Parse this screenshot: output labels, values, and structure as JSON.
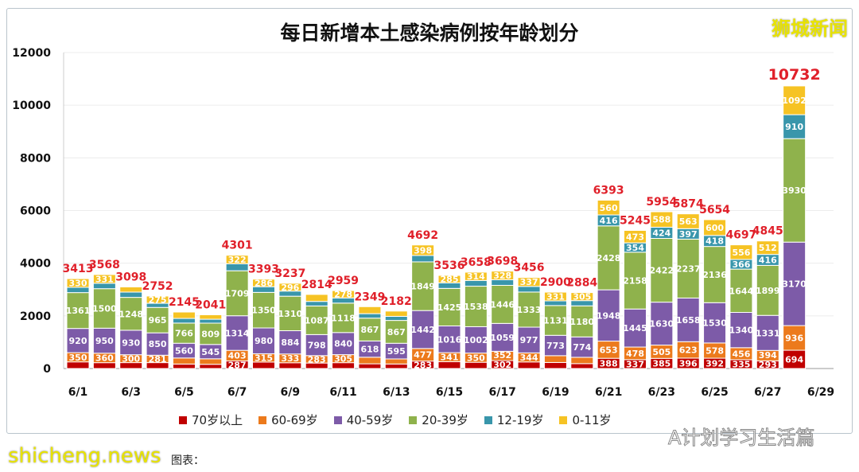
{
  "chart_data": {
    "type": "bar",
    "stacked": true,
    "title": "每日新增本土感染病例按年龄划分",
    "categories": [
      "6/1",
      "6/2",
      "6/3",
      "6/4",
      "6/5",
      "6/6",
      "6/7",
      "6/8",
      "6/9",
      "6/10",
      "6/11",
      "6/12",
      "6/13",
      "6/14",
      "6/15",
      "6/16",
      "6/17",
      "6/18",
      "6/19",
      "6/20",
      "6/21",
      "6/22",
      "6/23",
      "6/24",
      "6/25",
      "6/26",
      "6/27",
      "6/28",
      "6/29"
    ],
    "x_tick_labels": [
      "6/1",
      "6/3",
      "6/5",
      "6/7",
      "6/9",
      "6/11",
      "6/13",
      "6/15",
      "6/17",
      "6/19",
      "6/21",
      "6/23",
      "6/25",
      "6/27",
      "6/29"
    ],
    "ylim": [
      0,
      12000
    ],
    "y_ticks": [
      0,
      2000,
      4000,
      6000,
      8000,
      10000,
      12000
    ],
    "grid": true,
    "legend_position": "bottom",
    "totals": [
      3413,
      3568,
      3098,
      2752,
      2145,
      2041,
      4301,
      3393,
      3237,
      2814,
      2959,
      2349,
      2182,
      4692,
      3536,
      3658,
      3698,
      3456,
      2900,
      2884,
      6393,
      5245,
      5954,
      5874,
      5654,
      4697,
      4845,
      10732,
      null
    ],
    "series": [
      {
        "name": "70岁以上",
        "color": "#c00000",
        "values": [
          252,
          222,
          224,
          224,
          170,
          160,
          287,
          246,
          219,
          208,
          222,
          179,
          172,
          283,
          261,
          237,
          302,
          250,
          229,
          186,
          388,
          337,
          385,
          396,
          392,
          335,
          293,
          694,
          null
        ]
      },
      {
        "name": "60-69岁",
        "color": "#ec7a1c",
        "values": [
          350,
          360,
          300,
          281,
          230,
          209,
          403,
          315,
          333,
          283,
          305,
          250,
          192,
          477,
          341,
          350,
          352,
          344,
          259,
          240,
          653,
          478,
          505,
          623,
          578,
          456,
          394,
          936,
          null
        ]
      },
      {
        "name": "40-59岁",
        "color": "#7d5ba8",
        "values": [
          920,
          950,
          930,
          850,
          560,
          545,
          1314,
          980,
          884,
          798,
          840,
          618,
          595,
          1442,
          1016,
          1002,
          1059,
          977,
          773,
          774,
          1948,
          1445,
          1630,
          1658,
          1530,
          1340,
          1331,
          3170,
          null
        ]
      },
      {
        "name": "20-39岁",
        "color": "#8fb24c",
        "values": [
          1361,
          1500,
          1248,
          965,
          766,
          809,
          1709,
          1350,
          1310,
          1087,
          1118,
          867,
          867,
          1849,
          1425,
          1538,
          1446,
          1333,
          1131,
          1180,
          2428,
          2158,
          2422,
          2237,
          2136,
          1644,
          1899,
          3930,
          null
        ]
      },
      {
        "name": "12-19岁",
        "color": "#3996ab",
        "values": [
          200,
          205,
          200,
          157,
          177,
          149,
          266,
          216,
          195,
          173,
          196,
          169,
          155,
          243,
          208,
          217,
          211,
          215,
          177,
          199,
          416,
          354,
          424,
          397,
          418,
          366,
          416,
          910,
          null
        ]
      },
      {
        "name": "0-11岁",
        "color": "#f6c324",
        "values": [
          330,
          331,
          196,
          275,
          242,
          169,
          322,
          286,
          296,
          265,
          278,
          266,
          201,
          398,
          285,
          314,
          328,
          337,
          331,
          305,
          560,
          473,
          588,
          563,
          600,
          556,
          512,
          1092,
          null
        ]
      }
    ],
    "total_label_color": "#e0202a"
  },
  "watermarks": {
    "top_right": "狮城新闻",
    "bottom_left": "shicheng.news",
    "bottom_right": "A计划学习生活篇"
  },
  "source_label": "图表："
}
